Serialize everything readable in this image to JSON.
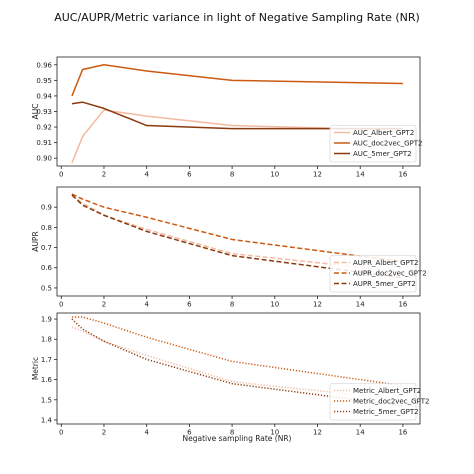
{
  "figure": {
    "title": "AUC/AUPR/Metric variance in light of Negative Sampling Rate (NR)",
    "xlabel": "Negative sampling Rate (NR)"
  },
  "chart_data": [
    {
      "type": "line",
      "ylabel": "AUC",
      "xlim": [
        -0.2,
        16.8
      ],
      "ylim": [
        0.895,
        0.965
      ],
      "xticks": [
        0,
        2,
        4,
        6,
        8,
        10,
        12,
        14,
        16
      ],
      "yticks": [
        0.9,
        0.91,
        0.92,
        0.93,
        0.94,
        0.95,
        0.96
      ],
      "ytick_labels": [
        "0.90",
        "0.91",
        "0.92",
        "0.93",
        "0.94",
        "0.95",
        "0.96"
      ],
      "legend_position": "lower-right",
      "x": [
        0.5,
        1,
        2,
        4,
        8,
        16
      ],
      "series": [
        {
          "name": "AUC_Albert_GPT2",
          "color": "#f4b9a0",
          "dash": "solid",
          "values": [
            0.897,
            0.914,
            0.931,
            0.927,
            0.921,
            0.918
          ]
        },
        {
          "name": "AUC_doc2vec_GPT2",
          "color": "#cc5a10",
          "dash": "solid",
          "values": [
            0.94,
            0.957,
            0.96,
            0.956,
            0.95,
            0.948
          ]
        },
        {
          "name": "AUC_5mer_GPT2",
          "color": "#8b3a0e",
          "dash": "solid",
          "values": [
            0.935,
            0.936,
            0.932,
            0.921,
            0.919,
            0.919
          ]
        }
      ]
    },
    {
      "type": "line",
      "ylabel": "AUPR",
      "xlim": [
        -0.2,
        16.8
      ],
      "ylim": [
        0.46,
        1.0
      ],
      "xticks": [
        0,
        2,
        4,
        6,
        8,
        10,
        12,
        14,
        16
      ],
      "yticks": [
        0.5,
        0.6,
        0.7,
        0.8,
        0.9
      ],
      "ytick_labels": [
        "0.5",
        "0.6",
        "0.7",
        "0.8",
        "0.9"
      ],
      "legend_position": "lower-right",
      "x": [
        0.5,
        1,
        2,
        4,
        8,
        16
      ],
      "series": [
        {
          "name": "AUPR_Albert_GPT2",
          "color": "#f4b9a0",
          "dash": "dashed",
          "values": [
            0.96,
            0.92,
            0.86,
            0.79,
            0.67,
            0.58
          ]
        },
        {
          "name": "AUPR_doc2vec_GPT2",
          "color": "#cc5a10",
          "dash": "dashed",
          "values": [
            0.965,
            0.94,
            0.9,
            0.85,
            0.74,
            0.63
          ]
        },
        {
          "name": "AUPR_5mer_GPT2",
          "color": "#8b3a0e",
          "dash": "dashed",
          "values": [
            0.96,
            0.91,
            0.86,
            0.78,
            0.66,
            0.55
          ]
        }
      ]
    },
    {
      "type": "line",
      "ylabel": "Metric",
      "xlim": [
        -0.2,
        16.8
      ],
      "ylim": [
        1.38,
        1.93
      ],
      "xticks": [
        0,
        2,
        4,
        6,
        8,
        10,
        12,
        14,
        16
      ],
      "yticks": [
        1.4,
        1.5,
        1.6,
        1.7,
        1.8,
        1.9
      ],
      "ytick_labels": [
        "1.4",
        "1.5",
        "1.6",
        "1.7",
        "1.8",
        "1.9"
      ],
      "legend_position": "lower-right",
      "x": [
        0.5,
        1,
        2,
        4,
        8,
        16
      ],
      "series": [
        {
          "name": "Metric_Albert_GPT2",
          "color": "#f4b9a0",
          "dash": "dotted",
          "values": [
            1.86,
            1.84,
            1.79,
            1.72,
            1.59,
            1.5
          ]
        },
        {
          "name": "Metric_doc2vec_GPT2",
          "color": "#cc5a10",
          "dash": "dotted",
          "values": [
            1.91,
            1.91,
            1.88,
            1.81,
            1.69,
            1.57
          ]
        },
        {
          "name": "Metric_5mer_GPT2",
          "color": "#8b3a0e",
          "dash": "dotted",
          "values": [
            1.9,
            1.85,
            1.79,
            1.7,
            1.58,
            1.47
          ]
        }
      ]
    }
  ]
}
